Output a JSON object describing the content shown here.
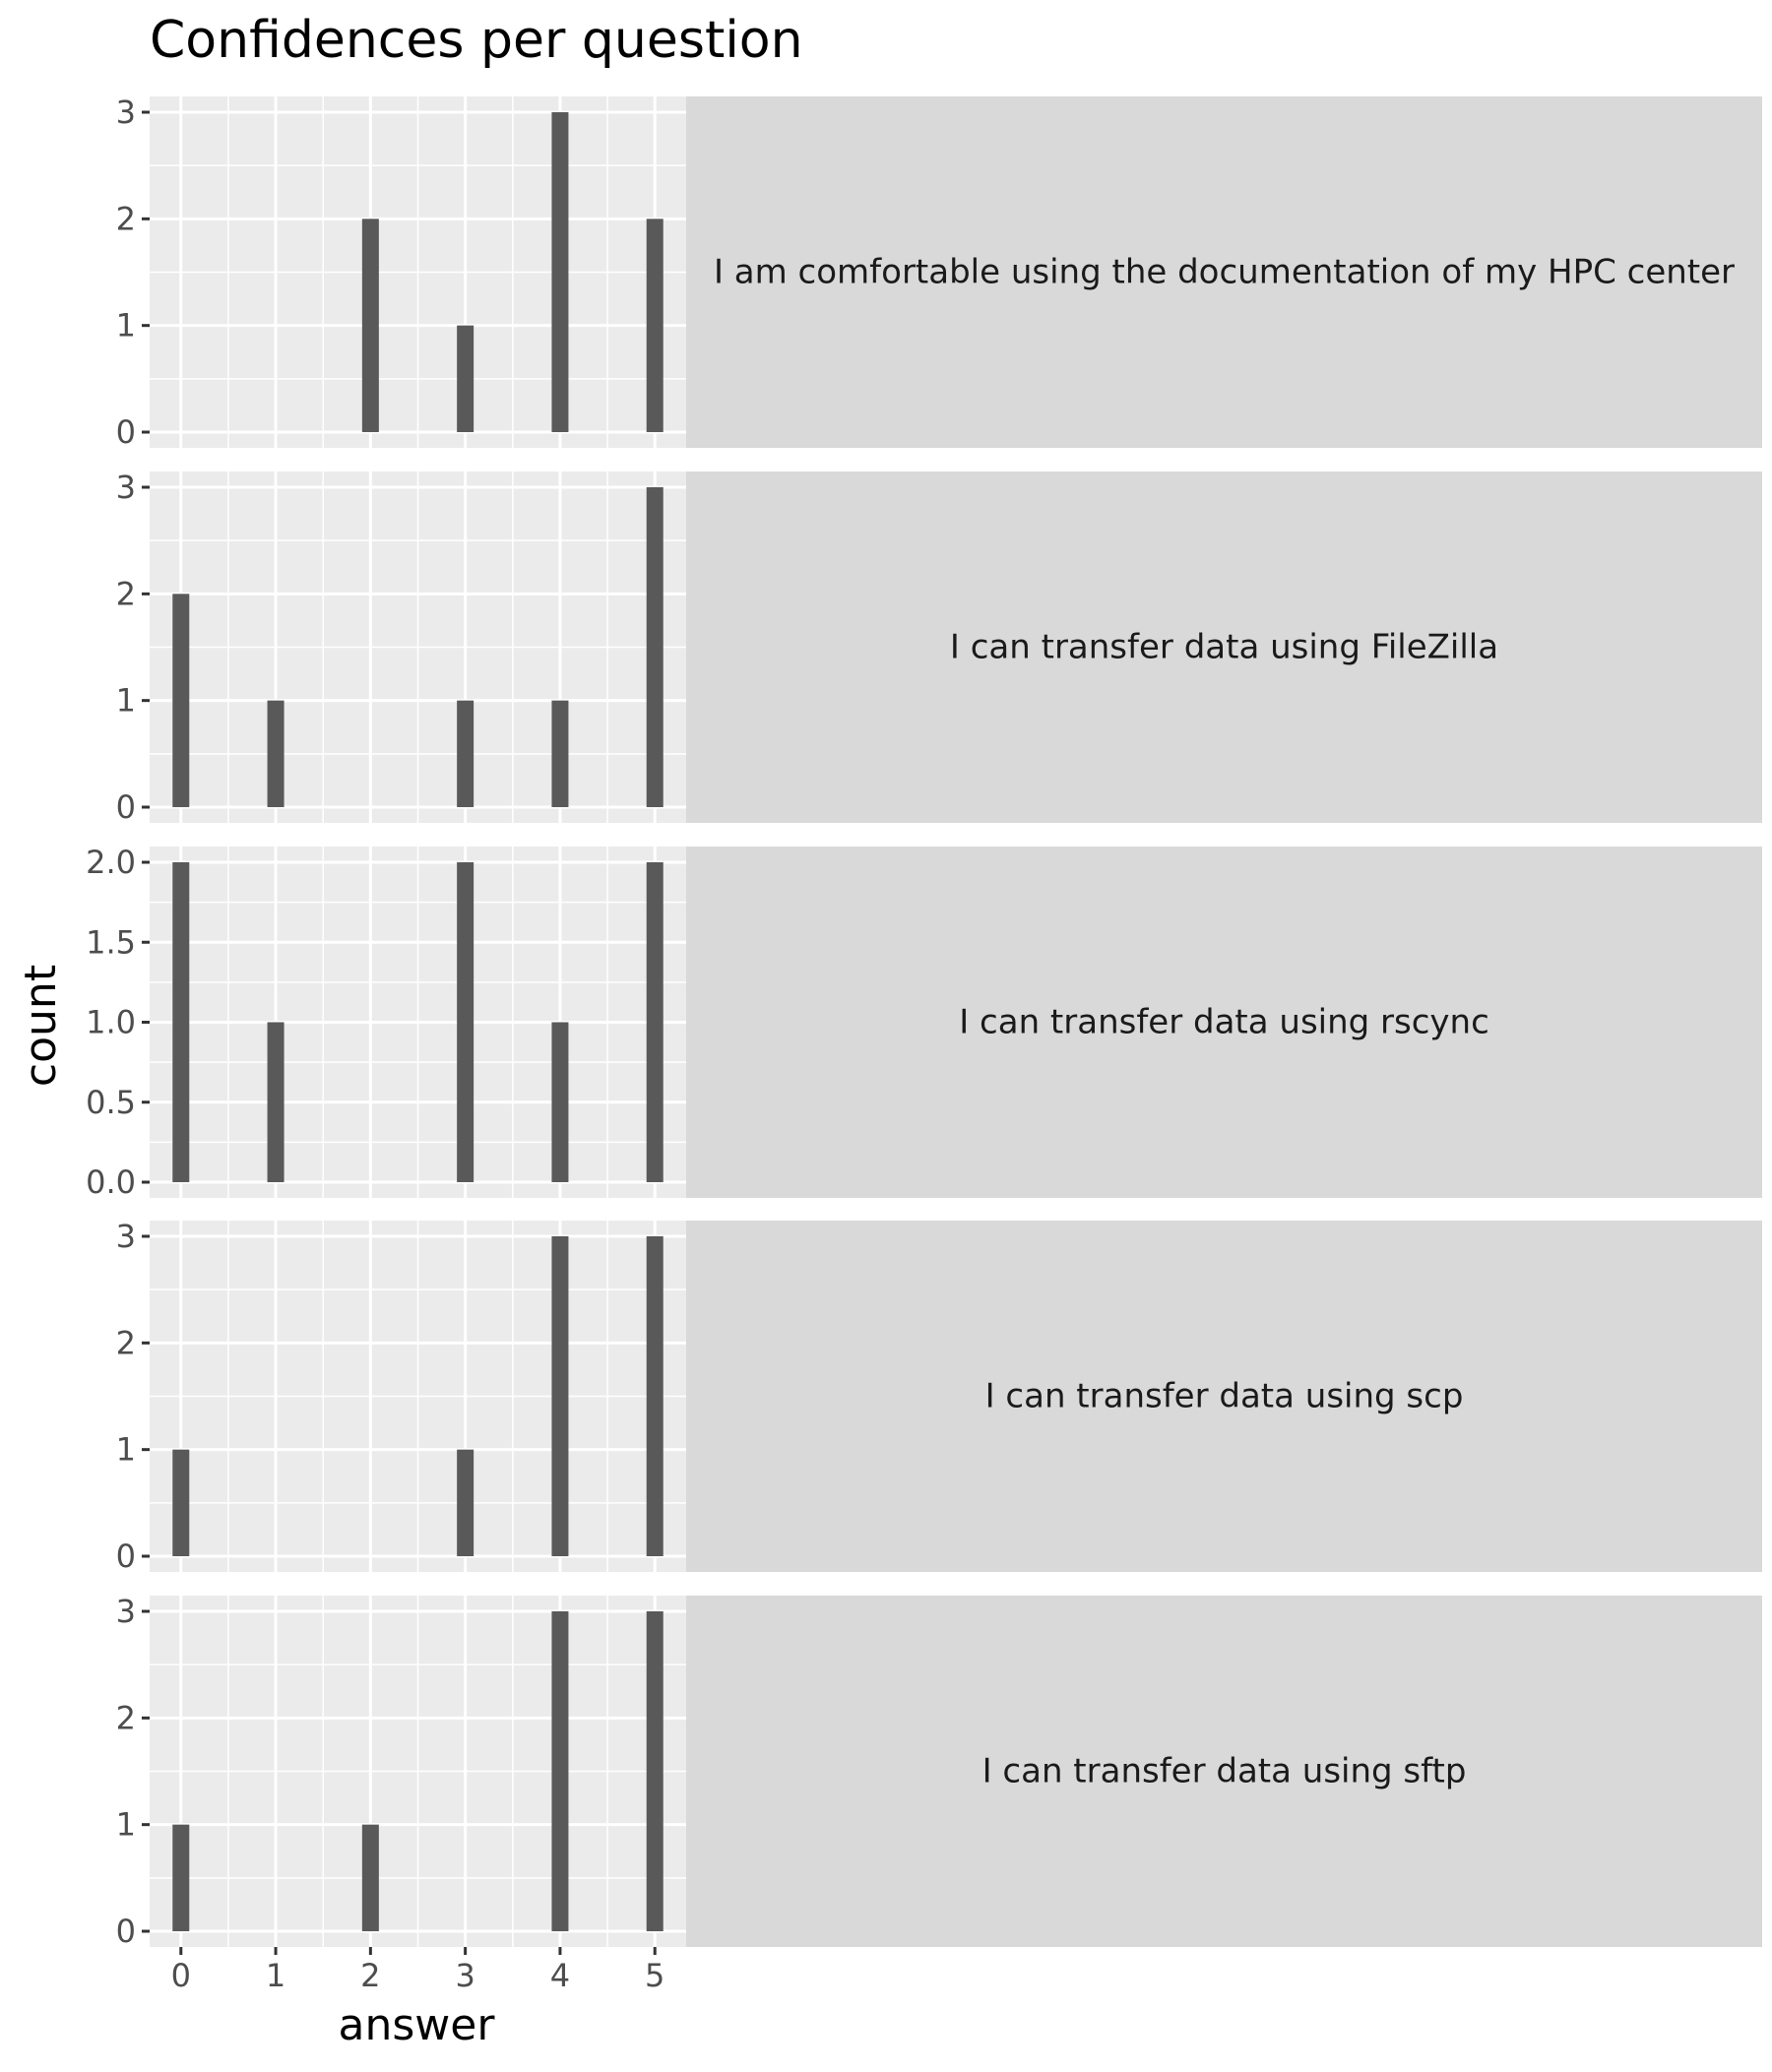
{
  "chart_data": {
    "type": "bar",
    "title": "Confidences per question",
    "xlabel": "answer",
    "ylabel": "count",
    "x_ticks": [
      "0",
      "1",
      "2",
      "3",
      "4",
      "5"
    ],
    "xlim": [
      -0.33,
      5.33
    ],
    "grid": true,
    "facets": [
      {
        "label": "I am comfortable using the documentation of my HPC center",
        "x": [
          0,
          1,
          2,
          3,
          4,
          5
        ],
        "values": [
          0,
          0,
          2,
          1,
          3,
          2
        ],
        "ylim": [
          0,
          3
        ],
        "y_ticks": [
          "0",
          "1",
          "2",
          "3"
        ]
      },
      {
        "label": "I can transfer data using FileZilla",
        "x": [
          0,
          1,
          2,
          3,
          4,
          5
        ],
        "values": [
          2,
          1,
          0,
          1,
          1,
          3
        ],
        "ylim": [
          0,
          3
        ],
        "y_ticks": [
          "0",
          "1",
          "2",
          "3"
        ]
      },
      {
        "label": "I can transfer data using rscync",
        "x": [
          0,
          1,
          2,
          3,
          4,
          5
        ],
        "values": [
          2,
          1,
          0,
          2,
          1,
          2
        ],
        "ylim": [
          0,
          2
        ],
        "y_ticks": [
          "0.0",
          "0.5",
          "1.0",
          "1.5",
          "2.0"
        ]
      },
      {
        "label": "I can transfer data using scp",
        "x": [
          0,
          1,
          2,
          3,
          4,
          5
        ],
        "values": [
          1,
          0,
          0,
          1,
          3,
          3
        ],
        "ylim": [
          0,
          3
        ],
        "y_ticks": [
          "0",
          "1",
          "2",
          "3"
        ]
      },
      {
        "label": "I can transfer data using sftp",
        "x": [
          0,
          1,
          2,
          3,
          4,
          5
        ],
        "values": [
          1,
          0,
          1,
          0,
          3,
          3
        ],
        "ylim": [
          0,
          3
        ],
        "y_ticks": [
          "0",
          "1",
          "2",
          "3"
        ]
      }
    ],
    "colors": {
      "bar": "#595959",
      "panel_background": "#ebebeb",
      "strip_background": "#d9d9d9",
      "gridline": "#ffffff"
    }
  }
}
